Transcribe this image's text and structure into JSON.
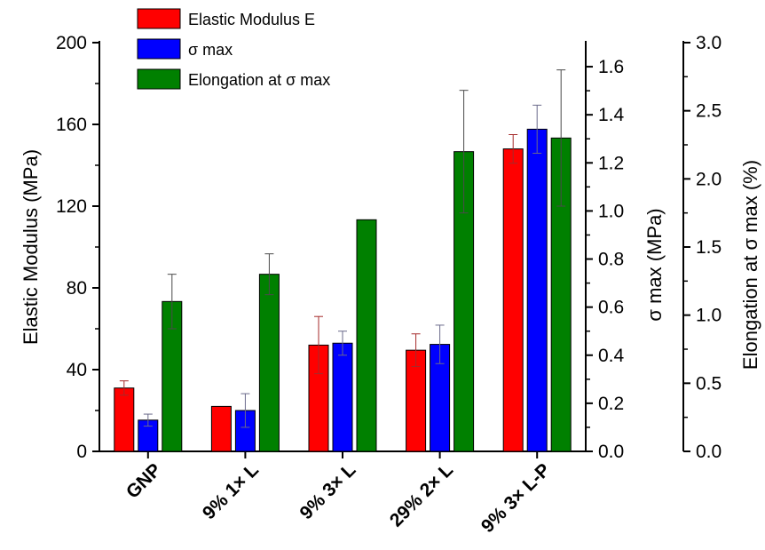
{
  "chart_data": {
    "type": "bar",
    "categories": [
      "GNP",
      "9% 1× L",
      "9% 3× L",
      "29% 2× L",
      "9% 3× L-P"
    ],
    "series": [
      {
        "name": "Elastic Modulus E",
        "axis": "left",
        "color": "#ff0000",
        "values": [
          31,
          22,
          52,
          49.5,
          148
        ],
        "errors": [
          3.5,
          null,
          14,
          8,
          7
        ]
      },
      {
        "name": "σ max",
        "axis": "middle",
        "color": "#0000ff",
        "values": [
          0.13,
          0.17,
          0.45,
          0.445,
          1.34
        ],
        "errors": [
          0.025,
          0.07,
          0.05,
          0.08,
          0.1
        ]
      },
      {
        "name": "Elongation at σ max",
        "axis": "right",
        "color": "#008000",
        "values": [
          1.1,
          1.3,
          1.7,
          2.2,
          2.3
        ],
        "errors": [
          0.2,
          0.15,
          null,
          0.45,
          0.5
        ]
      }
    ],
    "axes": {
      "left": {
        "label": "Elastic Modulus (MPa)",
        "range": [
          0,
          200
        ],
        "ticks": [
          "0",
          "40",
          "80",
          "120",
          "160",
          "200"
        ]
      },
      "middle": {
        "label": "σ max (MPa)",
        "range": [
          0,
          1.7
        ],
        "ticks": [
          "0.0",
          "0.2",
          "0.4",
          "0.6",
          "0.8",
          "1.0",
          "1.2",
          "1.4",
          "1.6"
        ]
      },
      "right": {
        "label": "Elongation at σ max (%)",
        "range": [
          0,
          3
        ],
        "ticks": [
          "0.0",
          "0.5",
          "1.0",
          "1.5",
          "2.0",
          "2.5",
          "3.0"
        ]
      }
    },
    "legend_position": "top-left",
    "grid": false
  }
}
